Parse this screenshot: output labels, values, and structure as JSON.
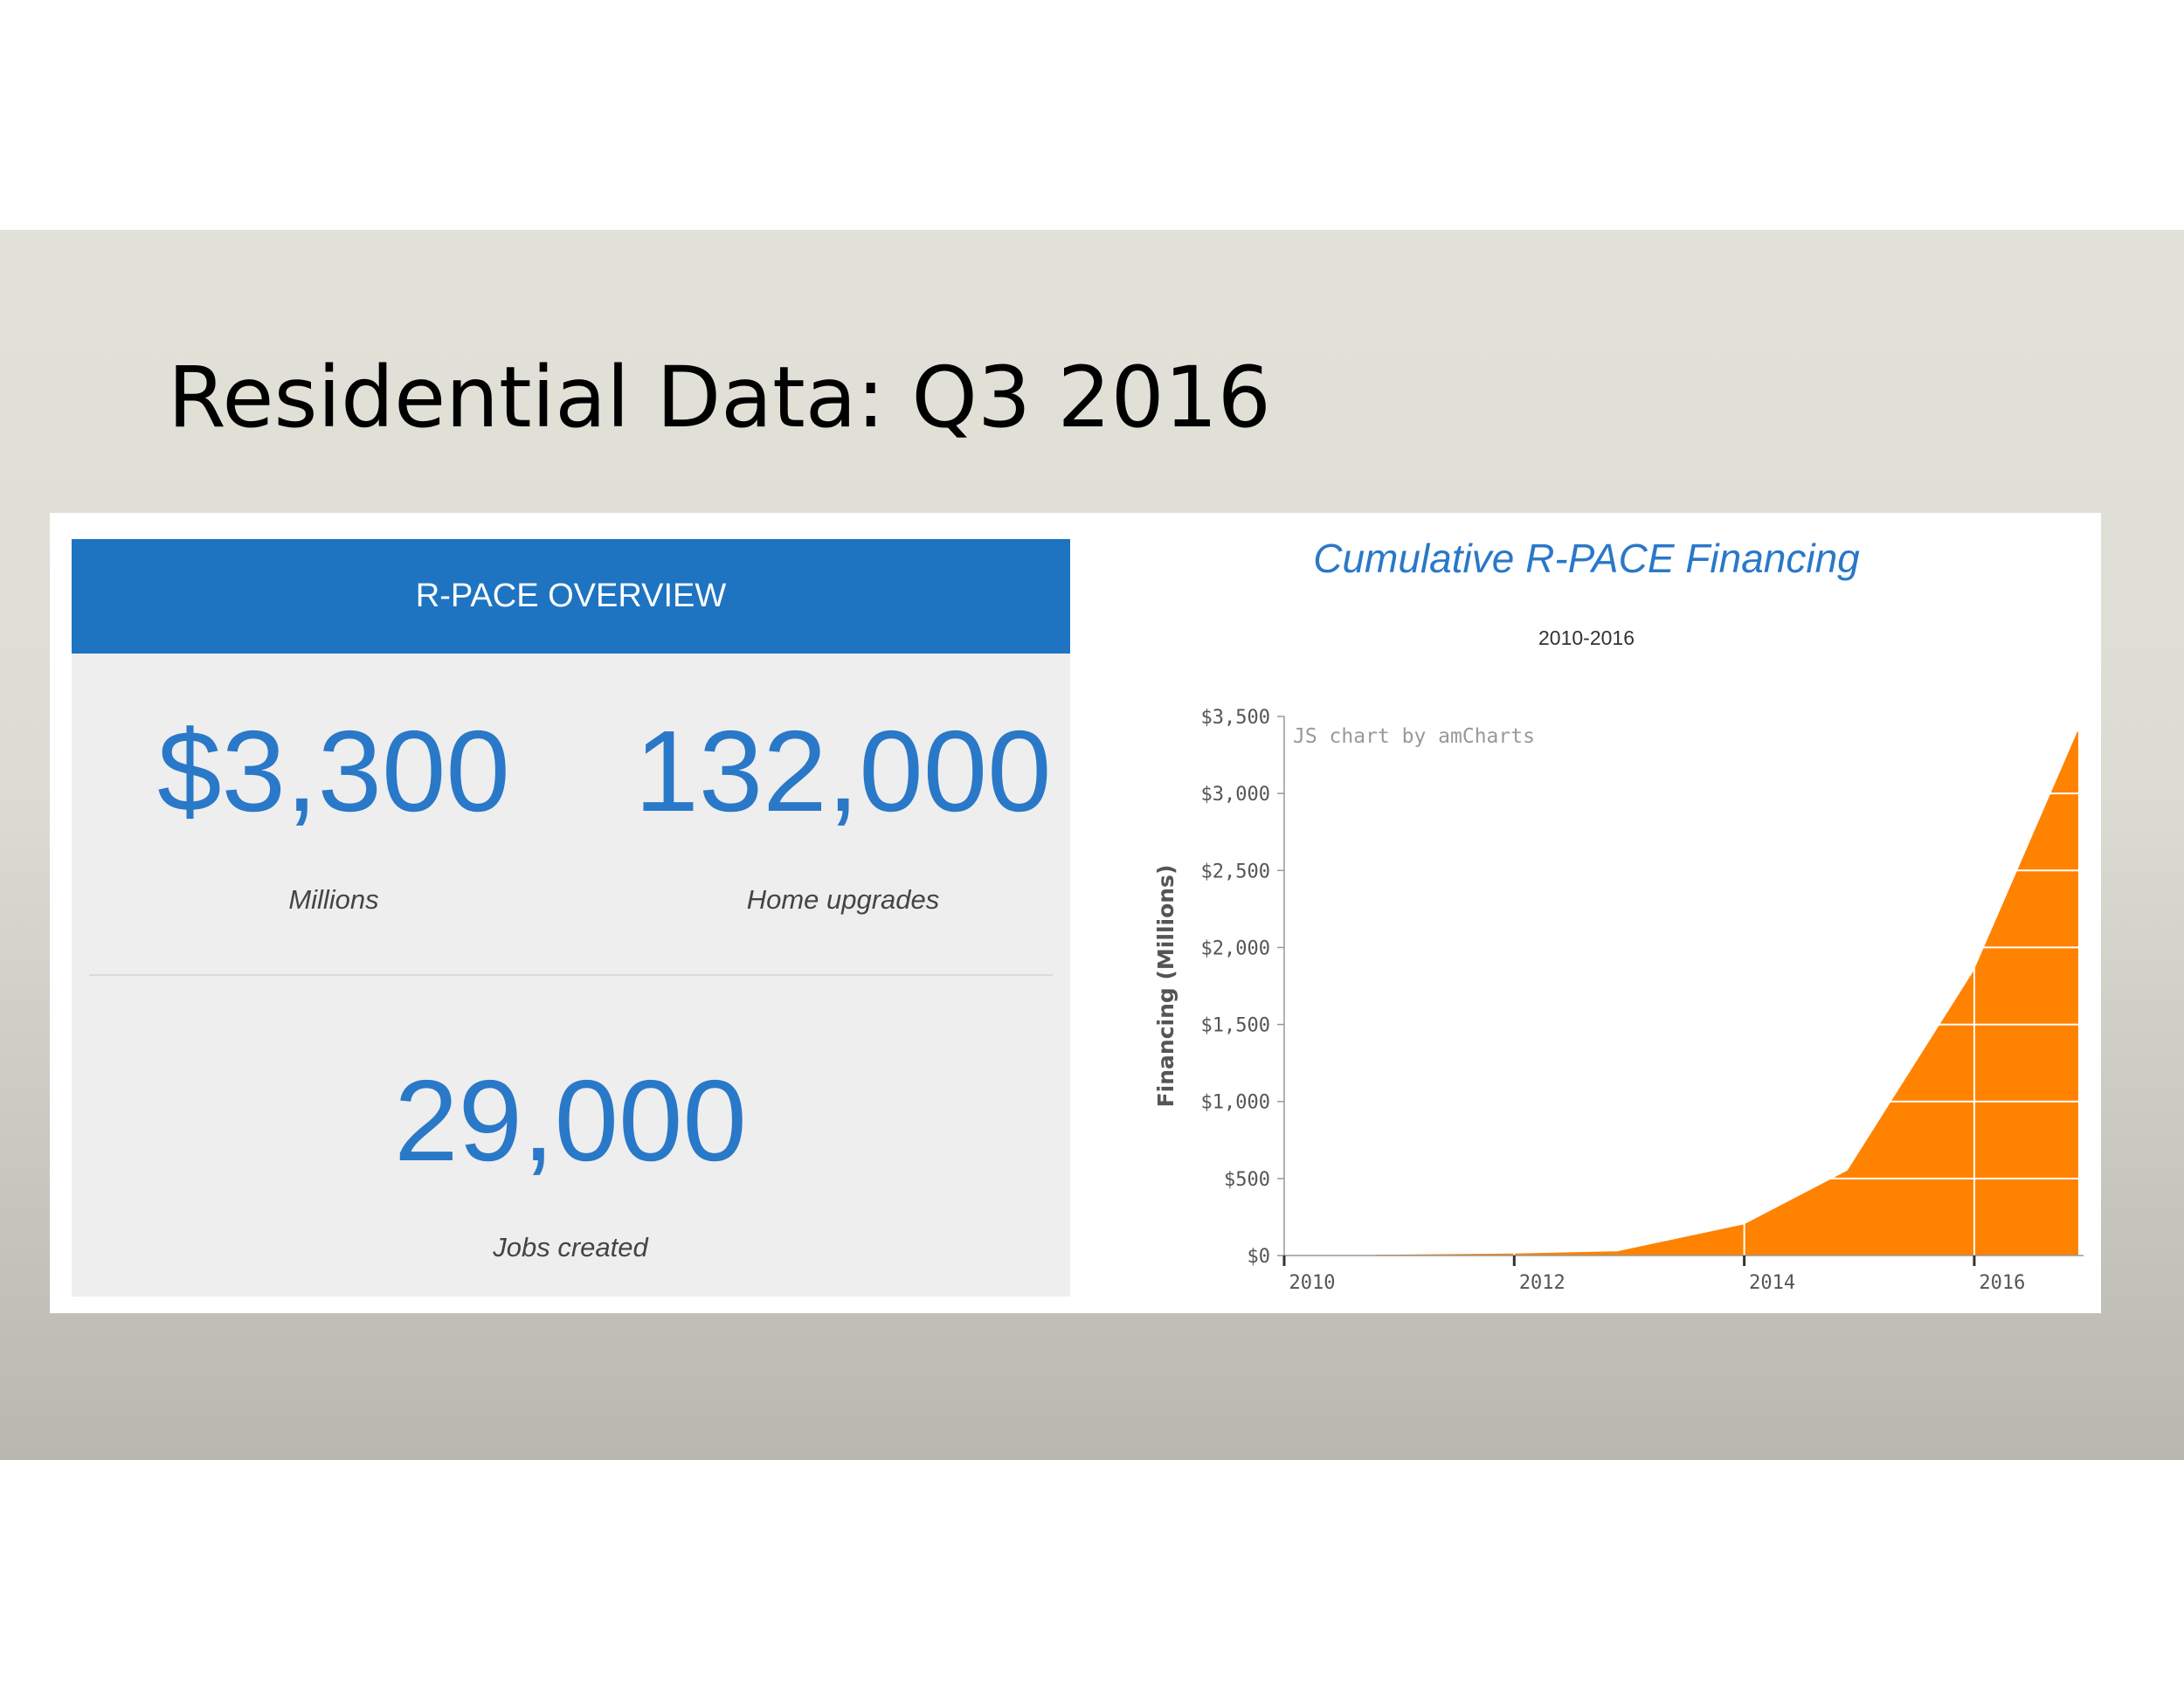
{
  "slide": {
    "title": "Residential Data: Q3 2016"
  },
  "overview": {
    "header": "R-PACE OVERVIEW",
    "stats": [
      {
        "value": "$3,300",
        "label": "Millions"
      },
      {
        "value": "132,000",
        "label": "Home upgrades"
      },
      {
        "value": "29,000",
        "label": "Jobs created"
      }
    ]
  },
  "chart_data": {
    "type": "area",
    "title": "Cumulative R-PACE Financing",
    "subtitle": "2010-2016",
    "ylabel": "Financing (Millions)",
    "xlabel": "",
    "credit": "JS chart by amCharts",
    "x": [
      2010.8,
      2011.3,
      2012.0,
      2012.9,
      2014.0,
      2014.9,
      2016.0,
      2016.9
    ],
    "values": [
      2,
      5,
      10,
      25,
      200,
      550,
      1850,
      3400
    ],
    "xlim": [
      2010,
      2016.95
    ],
    "ylim": [
      0,
      3500
    ],
    "xticks": [
      2010,
      2012,
      2014,
      2016
    ],
    "xtick_labels": [
      "2010",
      "2012",
      "2014",
      "2016"
    ],
    "yticks": [
      0,
      500,
      1000,
      1500,
      2000,
      2500,
      3000,
      3500
    ],
    "ytick_labels": [
      "$0",
      "$500",
      "$1,000",
      "$1,500",
      "$2,000",
      "$2,500",
      "$3,000",
      "$3,500"
    ],
    "grid": true,
    "fill_color": "#ff8200",
    "grid_color": "#ffffff",
    "axis_color": "#999999"
  }
}
